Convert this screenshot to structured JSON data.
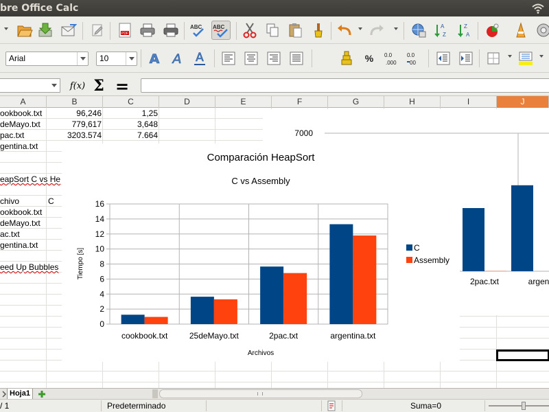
{
  "window": {
    "title": "bre Office Calc"
  },
  "toolbar2": {
    "font_name": "Arial",
    "font_size": "10"
  },
  "formula": {
    "fx_label": "f(x)",
    "sum_label": "Σ",
    "equals_label": "="
  },
  "columns": [
    "A",
    "B",
    "C",
    "D",
    "E",
    "F",
    "G",
    "H",
    "I",
    "J"
  ],
  "cells": {
    "r1": [
      "ookbook.txt",
      "96,246",
      "1,25"
    ],
    "r2": [
      "deMayo.txt",
      "779,617",
      "3,648"
    ],
    "r3": [
      "pac.txt",
      "3203.574",
      "7.664"
    ],
    "r4": [
      "gentina.txt"
    ],
    "r6": "eapSort C vs He",
    "r8": [
      "chivo",
      "C"
    ],
    "r9": "ookbook.txt",
    "r10": "deMayo.txt",
    "r11": "ac.txt",
    "r12": "gentina.txt",
    "r14": "eed Up Bubbles"
  },
  "sheet_tabs": {
    "tab_name": "Hoja1",
    "page": "/ 1"
  },
  "statusbar": {
    "page_style": "Predeterminado",
    "sum": "Suma=0"
  },
  "chart_data": [
    {
      "type": "bar",
      "title": "Comparación HeapSort",
      "subtitle": "C vs Assembly",
      "xlabel": "Archivos",
      "ylabel": "Tiempo [s]",
      "categories": [
        "cookbook.txt",
        "25deMayo.txt",
        "2pac.txt",
        "argentina.txt"
      ],
      "series": [
        {
          "name": "C",
          "values": [
            1.25,
            3.648,
            7.664,
            13.3
          ],
          "color": "#004586"
        },
        {
          "name": "Assembly",
          "values": [
            0.96,
            3.3,
            6.8,
            11.8
          ],
          "color": "#ff420e"
        }
      ],
      "ylim": [
        0,
        16
      ],
      "yticks": [
        "0",
        "2",
        "4",
        "6",
        "8",
        "10",
        "12",
        "14",
        "16"
      ],
      "grid": true,
      "legend": "right"
    },
    {
      "type": "bar",
      "categories": [
        "2pac.txt",
        "argen"
      ],
      "series": [
        {
          "name": "C",
          "values": [
            3203.574,
            4360
          ],
          "color": "#004586"
        },
        {
          "name": "Assembly",
          "values": [
            8,
            0
          ],
          "color": "#ff420e"
        }
      ],
      "yticks": [
        "7000"
      ],
      "ylim": [
        0,
        7000
      ],
      "grid": true
    }
  ],
  "colors": {
    "selected_column": "#e9813d",
    "series_c": "#004586",
    "series_asm": "#ff420e"
  }
}
